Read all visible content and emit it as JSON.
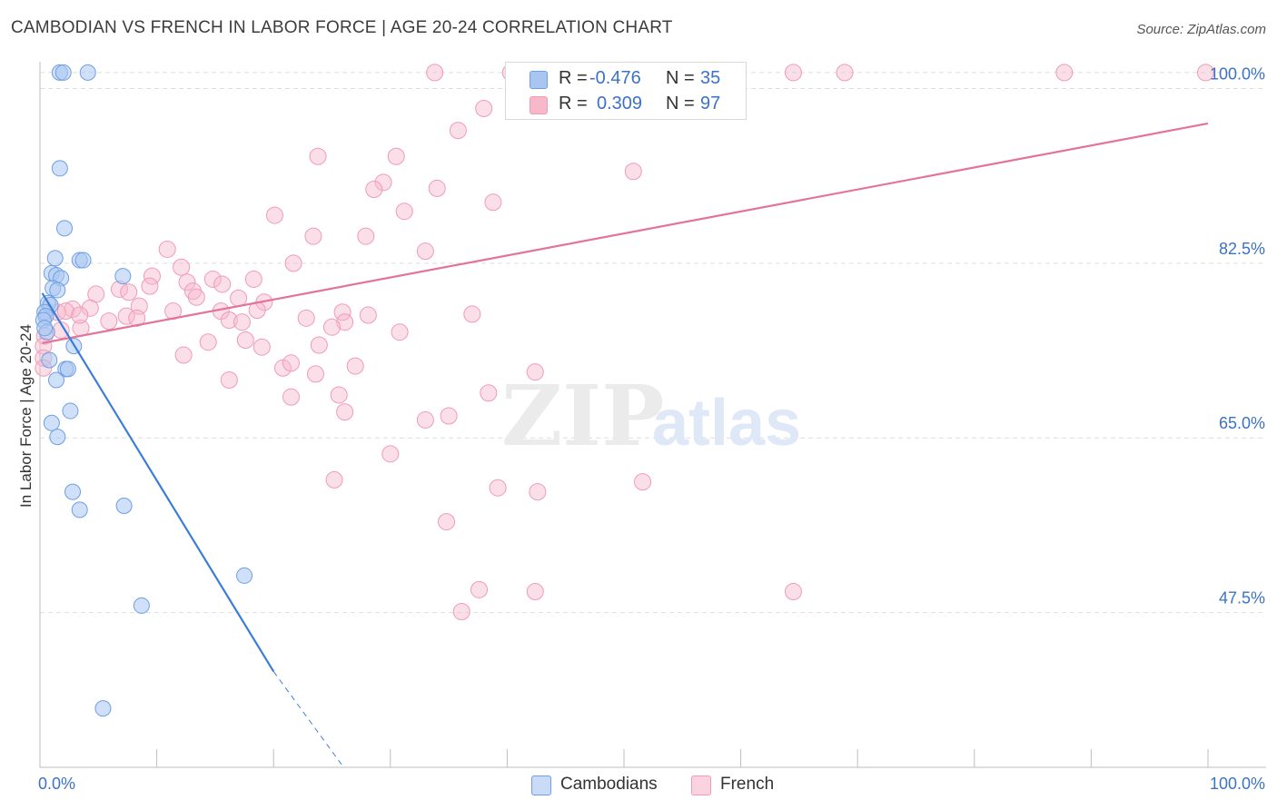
{
  "title": "CAMBODIAN VS FRENCH IN LABOR FORCE | AGE 20-24 CORRELATION CHART",
  "source": "Source: ZipAtlas.com",
  "watermark": {
    "zip": "ZIP",
    "atlas": "atlas"
  },
  "legend": {
    "rows": [
      {
        "r_label": "R =",
        "r_value": "-0.476",
        "n_label": "N =",
        "n_value": "35",
        "color": "#a9c6f2"
      },
      {
        "r_label": "R =",
        "r_value": "0.309",
        "n_label": "N =",
        "n_value": "97",
        "color": "#f7b8cc"
      }
    ]
  },
  "bottom_legend": [
    {
      "label": "Cambodians",
      "color": "#a9c6f2"
    },
    {
      "label": "French",
      "color": "#f7b8cc"
    }
  ],
  "chart_data": {
    "type": "scatter",
    "title": "CAMBODIAN VS FRENCH IN LABOR FORCE | AGE 20-24 CORRELATION CHART",
    "ylabel": "In Labor Force | Age 20-24",
    "xlabel": "",
    "xlim": [
      0,
      100
    ],
    "ylim": [
      32,
      102.5
    ],
    "x_tick_labels": [
      "0.0%",
      "100.0%"
    ],
    "y_ticks": [
      47.5,
      65.0,
      82.5,
      100.0
    ],
    "y_tick_labels": [
      "47.5%",
      "65.0%",
      "82.5%",
      "100.0%"
    ],
    "grid": true,
    "legend_position": "top-center",
    "colors": {
      "Cambodians": "#6e9fe3",
      "French": "#f09bb5",
      "Cambodians_line": "#3b7dd8",
      "French_line": "#e3739b",
      "axis_labels": "#3b72c7"
    },
    "series": [
      {
        "name": "Cambodians",
        "r": -0.476,
        "n": 35,
        "trend": {
          "x0": 0.2,
          "y0": 79.5,
          "x1": 20.0,
          "y1": 41.6,
          "dashed_to_x": 26.0,
          "dashed_to_y": 32.0
        },
        "points": [
          [
            1.7,
            101.6
          ],
          [
            2.0,
            101.6
          ],
          [
            4.1,
            101.6
          ],
          [
            1.7,
            92.0
          ],
          [
            2.1,
            86.0
          ],
          [
            1.3,
            83.0
          ],
          [
            3.4,
            82.8
          ],
          [
            3.7,
            82.8
          ],
          [
            1.0,
            81.5
          ],
          [
            1.4,
            81.3
          ],
          [
            1.8,
            81.0
          ],
          [
            7.1,
            81.2
          ],
          [
            1.1,
            80.0
          ],
          [
            1.5,
            79.8
          ],
          [
            0.7,
            78.5
          ],
          [
            0.9,
            78.3
          ],
          [
            0.4,
            77.6
          ],
          [
            0.5,
            77.2
          ],
          [
            0.3,
            76.8
          ],
          [
            0.6,
            75.6
          ],
          [
            2.9,
            74.2
          ],
          [
            0.8,
            72.8
          ],
          [
            2.2,
            71.9
          ],
          [
            2.4,
            71.9
          ],
          [
            1.4,
            70.8
          ],
          [
            2.6,
            67.7
          ],
          [
            1.0,
            66.5
          ],
          [
            1.5,
            65.1
          ],
          [
            2.8,
            59.6
          ],
          [
            3.4,
            57.8
          ],
          [
            7.2,
            58.2
          ],
          [
            17.5,
            51.2
          ],
          [
            8.7,
            48.2
          ],
          [
            5.4,
            37.9
          ],
          [
            0.4,
            76.0
          ]
        ]
      },
      {
        "name": "French",
        "r": 0.309,
        "n": 97,
        "trend": {
          "x0": 0.2,
          "y0": 74.5,
          "x1": 100.0,
          "y1": 96.5
        },
        "points": [
          [
            33.8,
            101.6
          ],
          [
            40.3,
            101.6
          ],
          [
            41.3,
            101.6
          ],
          [
            43.5,
            101.6
          ],
          [
            46.0,
            101.6
          ],
          [
            50.7,
            101.6
          ],
          [
            52.5,
            101.6
          ],
          [
            58.0,
            101.6
          ],
          [
            59.0,
            101.6
          ],
          [
            64.5,
            101.6
          ],
          [
            68.9,
            101.6
          ],
          [
            87.7,
            101.6
          ],
          [
            99.8,
            101.6
          ],
          [
            38.0,
            98.0
          ],
          [
            35.8,
            95.8
          ],
          [
            23.8,
            93.2
          ],
          [
            30.5,
            93.2
          ],
          [
            50.8,
            91.7
          ],
          [
            29.4,
            90.6
          ],
          [
            28.6,
            89.9
          ],
          [
            34.0,
            90.0
          ],
          [
            38.8,
            88.6
          ],
          [
            31.2,
            87.7
          ],
          [
            20.1,
            87.3
          ],
          [
            23.4,
            85.2
          ],
          [
            27.9,
            85.2
          ],
          [
            10.9,
            83.9
          ],
          [
            33.0,
            83.7
          ],
          [
            21.7,
            82.5
          ],
          [
            12.1,
            82.1
          ],
          [
            14.8,
            80.9
          ],
          [
            9.6,
            81.2
          ],
          [
            18.3,
            80.9
          ],
          [
            12.6,
            80.6
          ],
          [
            15.6,
            80.4
          ],
          [
            9.4,
            80.2
          ],
          [
            6.8,
            79.9
          ],
          [
            13.1,
            79.7
          ],
          [
            4.8,
            79.4
          ],
          [
            13.4,
            79.1
          ],
          [
            17.0,
            79.0
          ],
          [
            19.2,
            78.6
          ],
          [
            8.5,
            78.2
          ],
          [
            4.3,
            78.0
          ],
          [
            2.8,
            77.9
          ],
          [
            1.5,
            77.6
          ],
          [
            2.2,
            77.7
          ],
          [
            11.4,
            77.7
          ],
          [
            15.5,
            77.7
          ],
          [
            18.6,
            77.8
          ],
          [
            25.9,
            77.6
          ],
          [
            22.8,
            77.0
          ],
          [
            7.4,
            77.2
          ],
          [
            16.2,
            76.8
          ],
          [
            17.3,
            76.6
          ],
          [
            5.9,
            76.7
          ],
          [
            28.1,
            77.3
          ],
          [
            26.1,
            76.6
          ],
          [
            25.0,
            76.1
          ],
          [
            3.5,
            76.0
          ],
          [
            0.4,
            75.2
          ],
          [
            0.3,
            74.2
          ],
          [
            0.3,
            73.0
          ],
          [
            0.3,
            72.0
          ],
          [
            37.0,
            77.4
          ],
          [
            1.8,
            75.8
          ],
          [
            17.6,
            74.8
          ],
          [
            19.0,
            74.1
          ],
          [
            12.3,
            73.3
          ],
          [
            27.0,
            72.2
          ],
          [
            20.8,
            72.0
          ],
          [
            21.5,
            72.5
          ],
          [
            23.6,
            71.4
          ],
          [
            16.2,
            70.8
          ],
          [
            42.4,
            71.6
          ],
          [
            21.5,
            69.1
          ],
          [
            25.6,
            69.3
          ],
          [
            38.4,
            69.5
          ],
          [
            26.1,
            67.6
          ],
          [
            35.0,
            67.2
          ],
          [
            33.0,
            66.8
          ],
          [
            30.0,
            63.4
          ],
          [
            25.2,
            60.8
          ],
          [
            51.6,
            60.6
          ],
          [
            39.2,
            60.0
          ],
          [
            42.6,
            59.6
          ],
          [
            34.8,
            56.6
          ],
          [
            37.6,
            49.8
          ],
          [
            42.4,
            49.6
          ],
          [
            64.5,
            49.6
          ],
          [
            36.1,
            47.6
          ],
          [
            14.4,
            74.6
          ],
          [
            23.9,
            74.3
          ],
          [
            30.8,
            75.6
          ],
          [
            7.6,
            79.6
          ],
          [
            3.4,
            77.3
          ],
          [
            8.3,
            77.0
          ]
        ]
      }
    ]
  }
}
